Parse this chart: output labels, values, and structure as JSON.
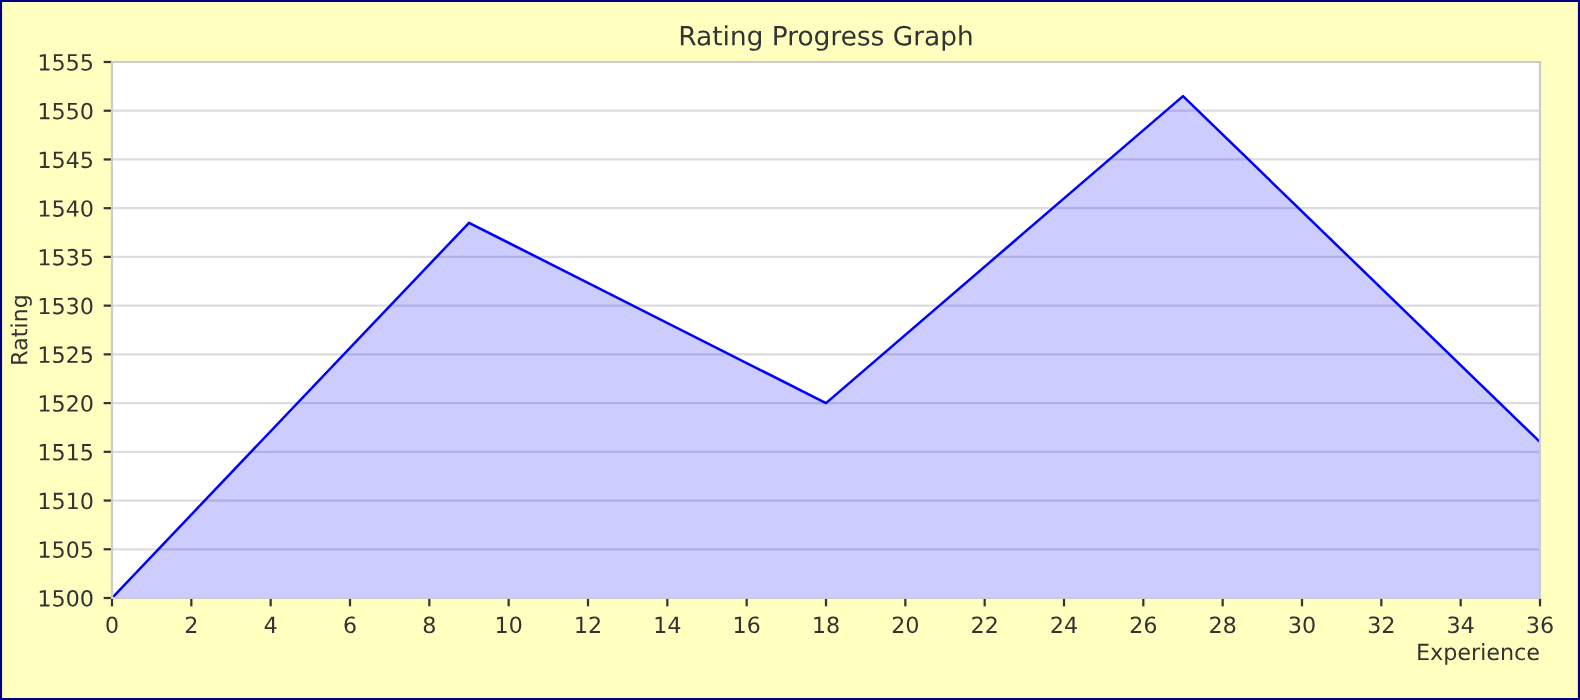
{
  "chart_data": {
    "type": "area",
    "title": "Rating Progress Graph",
    "xlabel": "Experience",
    "ylabel": "Rating",
    "x": [
      0,
      9,
      18,
      27,
      36
    ],
    "series": [
      {
        "color": "#0000ff",
        "values": [
          1500,
          1538.5,
          1520,
          1551.5,
          1516
        ]
      }
    ],
    "xlim": [
      0,
      36
    ],
    "xticks": [
      0,
      2,
      4,
      6,
      8,
      10,
      12,
      14,
      16,
      18,
      20,
      22,
      24,
      26,
      28,
      30,
      32,
      34,
      36
    ],
    "ylim": [
      1500,
      1555
    ],
    "yticks": [
      1500,
      1505,
      1510,
      1515,
      1520,
      1525,
      1530,
      1535,
      1540,
      1545,
      1550,
      1555
    ],
    "grid": "y",
    "legend": false
  }
}
